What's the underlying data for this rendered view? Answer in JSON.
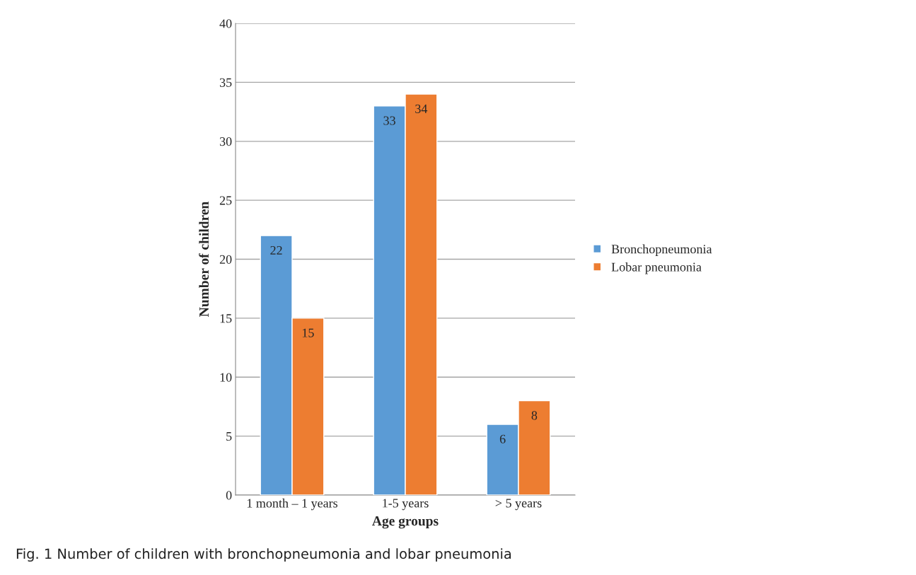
{
  "chart_data": {
    "type": "bar",
    "xlabel": "Age groups",
    "ylabel": "Number of children",
    "categories": [
      "1 month – 1 years",
      "1-5 years",
      "> 5 years"
    ],
    "series": [
      {
        "name": "Bronchopneumonia",
        "color": "#5b9bd5",
        "values": [
          22,
          33,
          6
        ]
      },
      {
        "name": "Lobar pneumonia",
        "color": "#ed7d31",
        "values": [
          15,
          34,
          8
        ]
      }
    ],
    "ylim": [
      0,
      40
    ],
    "yticks": [
      0,
      5,
      10,
      15,
      20,
      25,
      30,
      35,
      40
    ],
    "grid": "y",
    "legend": "right",
    "data_labels": true,
    "annotations": [
      "Fig. 1 Number of children with bronchopneumonia and lobar pneumonia"
    ]
  }
}
